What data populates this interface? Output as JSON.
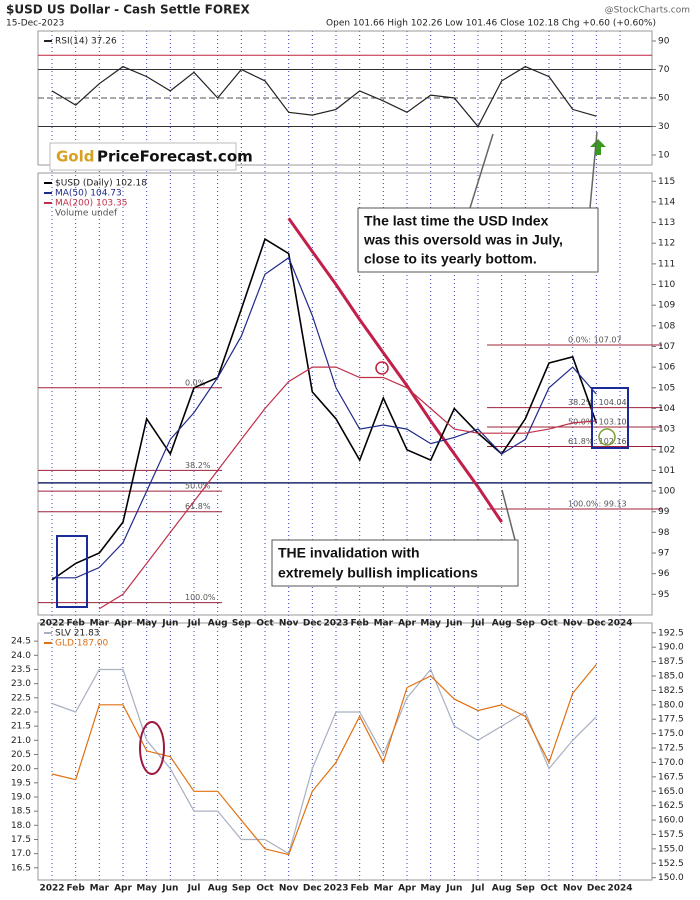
{
  "header": {
    "title": "$USD US Dollar - Cash Settle FOREX",
    "date": "15-Dec-2023",
    "quote": "Open 101.66 High 102.26 Low 101.46 Close 102.18 Chg +0.60 (+0.60%)",
    "watermark": "@StockCharts.com"
  },
  "logo": {
    "gold": "Gold",
    "rest": "PriceForecast.com"
  },
  "chart_data": [
    {
      "type": "line",
      "series": [
        {
          "name": "RSI(14) 37.26",
          "color": "#222222",
          "values": [
            55,
            45,
            60,
            72,
            65,
            55,
            68,
            50,
            70,
            62,
            40,
            38,
            42,
            55,
            48,
            40,
            52,
            50,
            30,
            62,
            72,
            65,
            42,
            37.26
          ]
        }
      ],
      "ylim": [
        3,
        97
      ],
      "yticks": [
        10,
        30,
        50,
        70,
        90
      ],
      "levels": [
        {
          "value": 80,
          "color": "#c02040",
          "dash": false
        },
        {
          "value": 70,
          "color": "#333333",
          "dash": false
        },
        {
          "value": 50,
          "color": "#555555",
          "dash": true
        },
        {
          "value": 30,
          "color": "#333333",
          "dash": false
        }
      ]
    },
    {
      "type": "line",
      "categories": [
        "2022",
        "Feb",
        "Mar",
        "Apr",
        "May",
        "Jun",
        "Jul",
        "Aug",
        "Sep",
        "Oct",
        "Nov",
        "Dec",
        "2023",
        "Feb",
        "Mar",
        "Apr",
        "May",
        "Jun",
        "Jul",
        "Aug",
        "Sep",
        "Oct",
        "Nov",
        "Dec",
        "2024"
      ],
      "series": [
        {
          "name": "$USD (Daily) 102.18",
          "color": "#000000",
          "values": [
            95.7,
            96.5,
            97.0,
            98.5,
            103.5,
            101.8,
            105.0,
            105.5,
            108.8,
            112.2,
            111.5,
            104.8,
            103.5,
            101.5,
            104.5,
            102.0,
            101.5,
            104.0,
            102.8,
            101.8,
            103.5,
            106.2,
            106.5,
            103.3,
            null
          ]
        },
        {
          "name": "MA(50) 104.73",
          "color": "#1f2a8a",
          "values": [
            95.8,
            95.8,
            96.3,
            97.5,
            100.0,
            102.5,
            103.8,
            105.5,
            107.5,
            110.5,
            111.3,
            108.5,
            105.0,
            103.0,
            103.2,
            103.0,
            102.3,
            102.6,
            103.0,
            101.8,
            102.5,
            105.0,
            106.0,
            104.7,
            null
          ]
        },
        {
          "name": "MA(200) 103.35",
          "color": "#c0304a",
          "values": [
            null,
            null,
            94.3,
            95.0,
            96.5,
            98.0,
            99.5,
            101.0,
            102.5,
            104.0,
            105.3,
            106.0,
            106.0,
            105.5,
            105.5,
            105.0,
            104.0,
            103.0,
            102.8,
            102.8,
            102.8,
            103.0,
            103.3,
            103.4,
            null
          ]
        }
      ],
      "legend_extra": "Volume undef",
      "trendline": {
        "color": "#c0204a",
        "values": [
          null,
          null,
          null,
          null,
          null,
          null,
          null,
          null,
          null,
          null,
          113.2,
          111.6,
          110.0,
          108.3,
          106.7,
          105.1,
          103.4,
          101.8,
          100.2,
          98.5,
          null,
          null,
          null,
          null,
          null
        ]
      },
      "support_line": {
        "value": 100.4,
        "color": "#1f2a6a"
      },
      "fib_levels_left": [
        {
          "label": "0.0%",
          "value": 105.0
        },
        {
          "label": "38.2%",
          "value": 101.0
        },
        {
          "label": "50.0%",
          "value": 100.0
        },
        {
          "label": "61.8%",
          "value": 99.0
        },
        {
          "label": "100.0%",
          "value": 94.6
        }
      ],
      "fib_levels_right": [
        {
          "label": "0.0%: 107.07",
          "value": 107.07
        },
        {
          "label": "38.2%: 104.04",
          "value": 104.04
        },
        {
          "label": "50.0%: 103.10",
          "value": 103.1
        },
        {
          "label": "61.8%: 102.16",
          "value": 102.16
        },
        {
          "label": "100.0%: 99.13",
          "value": 99.13
        }
      ],
      "ylim": [
        94,
        115.4
      ],
      "yticks": [
        95,
        96,
        97,
        98,
        99,
        100,
        101,
        102,
        103,
        104,
        105,
        106,
        107,
        108,
        109,
        110,
        111,
        112,
        113,
        114,
        115
      ],
      "annotations": [
        [
          "The last time the USD Index",
          "was this oversold was in July,",
          "close to its yearly bottom."
        ],
        [
          "THE invalidation with",
          "extremely bullish implications"
        ]
      ]
    },
    {
      "type": "line",
      "categories": [
        "2022",
        "Feb",
        "Mar",
        "Apr",
        "May",
        "Jun",
        "Jul",
        "Aug",
        "Sep",
        "Oct",
        "Nov",
        "Dec",
        "2023",
        "Feb",
        "Mar",
        "Apr",
        "May",
        "Jun",
        "Jul",
        "Aug",
        "Sep",
        "Oct",
        "Nov",
        "Dec",
        "2024"
      ],
      "series": [
        {
          "name": "SLV 21.83",
          "color": "#a8b0c0",
          "axis": "y",
          "values": [
            22.3,
            22.0,
            23.5,
            23.5,
            21.0,
            20.0,
            18.5,
            18.5,
            17.5,
            17.5,
            17.0,
            20.0,
            22.0,
            22.0,
            20.5,
            22.5,
            23.5,
            21.5,
            21.0,
            21.5,
            22.0,
            20.0,
            21.0,
            21.83,
            null
          ]
        },
        {
          "name": "GLD 187.00",
          "color": "#e07010",
          "axis": "y2",
          "values": [
            168,
            167,
            180,
            180,
            172,
            171,
            165,
            165,
            160,
            155,
            154,
            165,
            170,
            178,
            170,
            183,
            185,
            181,
            179,
            180,
            178,
            170,
            182,
            187,
            null
          ]
        }
      ],
      "ylim": [
        16.07,
        25.14
      ],
      "yticks": [
        16.5,
        {
          "value": 17,
          "label": "17.0"
        },
        17.5,
        {
          "value": 18,
          "label": "18.0"
        },
        18.5,
        {
          "value": 19,
          "label": "19.0"
        },
        19.5,
        {
          "value": 20,
          "label": "20.0"
        },
        20.5,
        {
          "value": 21,
          "label": "21.0"
        },
        21.5,
        {
          "value": 22,
          "label": "22.0"
        },
        22.5,
        {
          "value": 23,
          "label": "23.0"
        },
        23.5,
        {
          "value": 24,
          "label": "24.0"
        },
        24.5
      ],
      "y2lim": [
        149.6,
        194.2
      ],
      "y2ticks": [
        {
          "value": 150,
          "label": "150.0"
        },
        152.5,
        {
          "value": 155,
          "label": "155.0"
        },
        157.5,
        {
          "value": 160,
          "label": "160.0"
        },
        162.5,
        {
          "value": 165,
          "label": "165.0"
        },
        167.5,
        {
          "value": 170,
          "label": "170.0"
        },
        172.5,
        {
          "value": 175,
          "label": "175.0"
        },
        177.5,
        {
          "value": 180,
          "label": "180.0"
        },
        182.5,
        {
          "value": 185,
          "label": "185.0"
        },
        187.5,
        {
          "value": 190,
          "label": "190.0"
        },
        192.5
      ]
    }
  ]
}
